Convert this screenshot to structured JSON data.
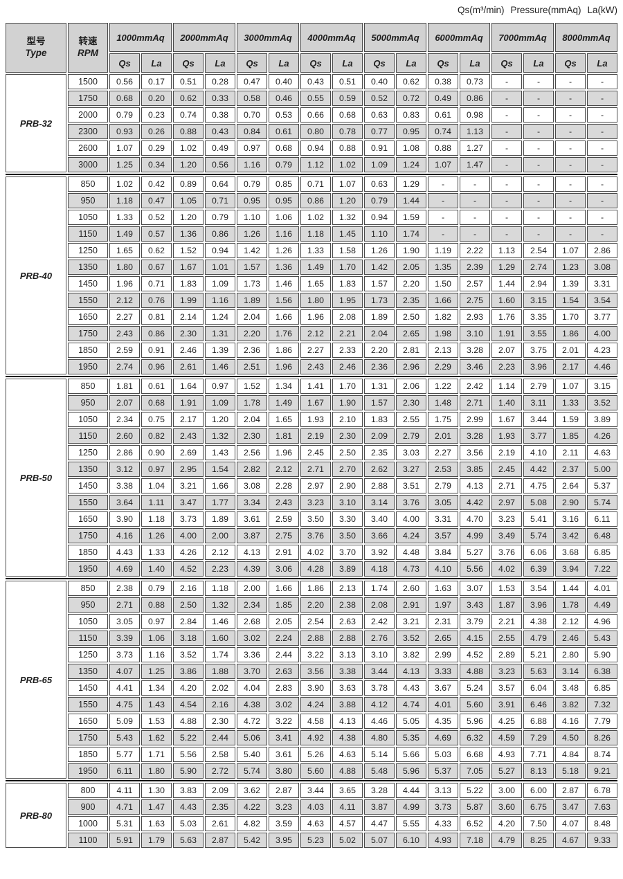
{
  "note": {
    "qs": "Qs(m³/min)",
    "pressure": "Pressure(mmAq)",
    "la": "La(kW)"
  },
  "header": {
    "type_cn": "型号",
    "type_en": "Type",
    "rpm_cn": "转速",
    "rpm_en": "RPM",
    "pressures": [
      "1000mmAq",
      "2000mmAq",
      "3000mmAq",
      "4000mmAq",
      "5000mmAq",
      "6000mmAq",
      "7000mmAq",
      "8000mmAq"
    ],
    "flow_label": "Qs",
    "power_label": "La"
  },
  "colors": {
    "header_bg": "#d2d2d2",
    "stripe_bg": "#d9d9d9",
    "cell_border": "#4a4a4a",
    "section_divider": "#0a0a0a"
  },
  "sections": [
    {
      "model": "PRB-32",
      "rows": [
        {
          "rpm": "1500",
          "values": [
            "0.56",
            "0.17",
            "0.51",
            "0.28",
            "0.47",
            "0.40",
            "0.43",
            "0.51",
            "0.40",
            "0.62",
            "0.38",
            "0.73",
            "-",
            "-",
            "-",
            "-"
          ]
        },
        {
          "rpm": "1750",
          "values": [
            "0.68",
            "0.20",
            "0.62",
            "0.33",
            "0.58",
            "0.46",
            "0.55",
            "0.59",
            "0.52",
            "0.72",
            "0.49",
            "0.86",
            "-",
            "-",
            "-",
            "-"
          ]
        },
        {
          "rpm": "2000",
          "values": [
            "0.79",
            "0.23",
            "0.74",
            "0.38",
            "0.70",
            "0.53",
            "0.66",
            "0.68",
            "0.63",
            "0.83",
            "0.61",
            "0.98",
            "-",
            "-",
            "-",
            "-"
          ]
        },
        {
          "rpm": "2300",
          "values": [
            "0.93",
            "0.26",
            "0.88",
            "0.43",
            "0.84",
            "0.61",
            "0.80",
            "0.78",
            "0.77",
            "0.95",
            "0.74",
            "1.13",
            "-",
            "-",
            "-",
            "-"
          ]
        },
        {
          "rpm": "2600",
          "values": [
            "1.07",
            "0.29",
            "1.02",
            "0.49",
            "0.97",
            "0.68",
            "0.94",
            "0.88",
            "0.91",
            "1.08",
            "0.88",
            "1.27",
            "-",
            "-",
            "-",
            "-"
          ]
        },
        {
          "rpm": "3000",
          "values": [
            "1.25",
            "0.34",
            "1.20",
            "0.56",
            "1.16",
            "0.79",
            "1.12",
            "1.02",
            "1.09",
            "1.24",
            "1.07",
            "1.47",
            "-",
            "-",
            "-",
            "-"
          ]
        }
      ]
    },
    {
      "model": "PRB-40",
      "rows": [
        {
          "rpm": "850",
          "values": [
            "1.02",
            "0.42",
            "0.89",
            "0.64",
            "0.79",
            "0.85",
            "0.71",
            "1.07",
            "0.63",
            "1.29",
            "-",
            "-",
            "-",
            "-",
            "-",
            "-"
          ]
        },
        {
          "rpm": "950",
          "values": [
            "1.18",
            "0.47",
            "1.05",
            "0.71",
            "0.95",
            "0.95",
            "0.86",
            "1.20",
            "0.79",
            "1.44",
            "-",
            "-",
            "-",
            "-",
            "-",
            "-"
          ]
        },
        {
          "rpm": "1050",
          "values": [
            "1.33",
            "0.52",
            "1.20",
            "0.79",
            "1.10",
            "1.06",
            "1.02",
            "1.32",
            "0.94",
            "1.59",
            "-",
            "-",
            "-",
            "-",
            "-",
            "-"
          ]
        },
        {
          "rpm": "1150",
          "values": [
            "1.49",
            "0.57",
            "1.36",
            "0.86",
            "1.26",
            "1.16",
            "1.18",
            "1.45",
            "1.10",
            "1.74",
            "-",
            "-",
            "-",
            "-",
            "-",
            "-"
          ]
        },
        {
          "rpm": "1250",
          "values": [
            "1.65",
            "0.62",
            "1.52",
            "0.94",
            "1.42",
            "1.26",
            "1.33",
            "1.58",
            "1.26",
            "1.90",
            "1.19",
            "2.22",
            "1.13",
            "2.54",
            "1.07",
            "2.86"
          ]
        },
        {
          "rpm": "1350",
          "values": [
            "1.80",
            "0.67",
            "1.67",
            "1.01",
            "1.57",
            "1.36",
            "1.49",
            "1.70",
            "1.42",
            "2.05",
            "1.35",
            "2.39",
            "1.29",
            "2.74",
            "1.23",
            "3.08"
          ]
        },
        {
          "rpm": "1450",
          "values": [
            "1.96",
            "0.71",
            "1.83",
            "1.09",
            "1.73",
            "1.46",
            "1.65",
            "1.83",
            "1.57",
            "2.20",
            "1.50",
            "2.57",
            "1.44",
            "2.94",
            "1.39",
            "3.31"
          ]
        },
        {
          "rpm": "1550",
          "values": [
            "2.12",
            "0.76",
            "1.99",
            "1.16",
            "1.89",
            "1.56",
            "1.80",
            "1.95",
            "1.73",
            "2.35",
            "1.66",
            "2.75",
            "1.60",
            "3.15",
            "1.54",
            "3.54"
          ]
        },
        {
          "rpm": "1650",
          "values": [
            "2.27",
            "0.81",
            "2.14",
            "1.24",
            "2.04",
            "1.66",
            "1.96",
            "2.08",
            "1.89",
            "2.50",
            "1.82",
            "2.93",
            "1.76",
            "3.35",
            "1.70",
            "3.77"
          ]
        },
        {
          "rpm": "1750",
          "values": [
            "2.43",
            "0.86",
            "2.30",
            "1.31",
            "2.20",
            "1.76",
            "2.12",
            "2.21",
            "2.04",
            "2.65",
            "1.98",
            "3.10",
            "1.91",
            "3.55",
            "1.86",
            "4.00"
          ]
        },
        {
          "rpm": "1850",
          "values": [
            "2.59",
            "0.91",
            "2.46",
            "1.39",
            "2.36",
            "1.86",
            "2.27",
            "2.33",
            "2.20",
            "2.81",
            "2.13",
            "3.28",
            "2.07",
            "3.75",
            "2.01",
            "4.23"
          ]
        },
        {
          "rpm": "1950",
          "values": [
            "2.74",
            "0.96",
            "2.61",
            "1.46",
            "2.51",
            "1.96",
            "2.43",
            "2.46",
            "2.36",
            "2.96",
            "2.29",
            "3.46",
            "2.23",
            "3.96",
            "2.17",
            "4.46"
          ]
        }
      ]
    },
    {
      "model": "PRB-50",
      "rows": [
        {
          "rpm": "850",
          "values": [
            "1.81",
            "0.61",
            "1.64",
            "0.97",
            "1.52",
            "1.34",
            "1.41",
            "1.70",
            "1.31",
            "2.06",
            "1.22",
            "2.42",
            "1.14",
            "2.79",
            "1.07",
            "3.15"
          ]
        },
        {
          "rpm": "950",
          "values": [
            "2.07",
            "0.68",
            "1.91",
            "1.09",
            "1.78",
            "1.49",
            "1.67",
            "1.90",
            "1.57",
            "2.30",
            "1.48",
            "2.71",
            "1.40",
            "3.11",
            "1.33",
            "3.52"
          ]
        },
        {
          "rpm": "1050",
          "values": [
            "2.34",
            "0.75",
            "2.17",
            "1.20",
            "2.04",
            "1.65",
            "1.93",
            "2.10",
            "1.83",
            "2.55",
            "1.75",
            "2.99",
            "1.67",
            "3.44",
            "1.59",
            "3.89"
          ]
        },
        {
          "rpm": "1150",
          "values": [
            "2.60",
            "0.82",
            "2.43",
            "1.32",
            "2.30",
            "1.81",
            "2.19",
            "2.30",
            "2.09",
            "2.79",
            "2.01",
            "3.28",
            "1.93",
            "3.77",
            "1.85",
            "4.26"
          ]
        },
        {
          "rpm": "1250",
          "values": [
            "2.86",
            "0.90",
            "2.69",
            "1.43",
            "2.56",
            "1.96",
            "2.45",
            "2.50",
            "2.35",
            "3.03",
            "2.27",
            "3.56",
            "2.19",
            "4.10",
            "2.11",
            "4.63"
          ]
        },
        {
          "rpm": "1350",
          "values": [
            "3.12",
            "0.97",
            "2.95",
            "1.54",
            "2.82",
            "2.12",
            "2.71",
            "2.70",
            "2.62",
            "3.27",
            "2.53",
            "3.85",
            "2.45",
            "4.42",
            "2.37",
            "5.00"
          ]
        },
        {
          "rpm": "1450",
          "values": [
            "3.38",
            "1.04",
            "3.21",
            "1.66",
            "3.08",
            "2.28",
            "2.97",
            "2.90",
            "2.88",
            "3.51",
            "2.79",
            "4.13",
            "2.71",
            "4.75",
            "2.64",
            "5.37"
          ]
        },
        {
          "rpm": "1550",
          "values": [
            "3.64",
            "1.11",
            "3.47",
            "1.77",
            "3.34",
            "2.43",
            "3.23",
            "3.10",
            "3.14",
            "3.76",
            "3.05",
            "4.42",
            "2.97",
            "5.08",
            "2.90",
            "5.74"
          ]
        },
        {
          "rpm": "1650",
          "values": [
            "3.90",
            "1.18",
            "3.73",
            "1.89",
            "3.61",
            "2.59",
            "3.50",
            "3.30",
            "3.40",
            "4.00",
            "3.31",
            "4.70",
            "3.23",
            "5.41",
            "3.16",
            "6.11"
          ]
        },
        {
          "rpm": "1750",
          "values": [
            "4.16",
            "1.26",
            "4.00",
            "2.00",
            "3.87",
            "2.75",
            "3.76",
            "3.50",
            "3.66",
            "4.24",
            "3.57",
            "4.99",
            "3.49",
            "5.74",
            "3.42",
            "6.48"
          ]
        },
        {
          "rpm": "1850",
          "values": [
            "4.43",
            "1.33",
            "4.26",
            "2.12",
            "4.13",
            "2.91",
            "4.02",
            "3.70",
            "3.92",
            "4.48",
            "3.84",
            "5.27",
            "3.76",
            "6.06",
            "3.68",
            "6.85"
          ]
        },
        {
          "rpm": "1950",
          "values": [
            "4.69",
            "1.40",
            "4.52",
            "2.23",
            "4.39",
            "3.06",
            "4.28",
            "3.89",
            "4.18",
            "4.73",
            "4.10",
            "5.56",
            "4.02",
            "6.39",
            "3.94",
            "7.22"
          ]
        }
      ]
    },
    {
      "model": "PRB-65",
      "rows": [
        {
          "rpm": "850",
          "values": [
            "2.38",
            "0.79",
            "2.16",
            "1.18",
            "2.00",
            "1.66",
            "1.86",
            "2.13",
            "1.74",
            "2.60",
            "1.63",
            "3.07",
            "1.53",
            "3.54",
            "1.44",
            "4.01"
          ]
        },
        {
          "rpm": "950",
          "values": [
            "2.71",
            "0.88",
            "2.50",
            "1.32",
            "2.34",
            "1.85",
            "2.20",
            "2.38",
            "2.08",
            "2.91",
            "1.97",
            "3.43",
            "1.87",
            "3.96",
            "1.78",
            "4.49"
          ]
        },
        {
          "rpm": "1050",
          "values": [
            "3.05",
            "0.97",
            "2.84",
            "1.46",
            "2.68",
            "2.05",
            "2.54",
            "2.63",
            "2.42",
            "3.21",
            "2.31",
            "3.79",
            "2.21",
            "4.38",
            "2.12",
            "4.96"
          ]
        },
        {
          "rpm": "1150",
          "values": [
            "3.39",
            "1.06",
            "3.18",
            "1.60",
            "3.02",
            "2.24",
            "2.88",
            "2.88",
            "2.76",
            "3.52",
            "2.65",
            "4.15",
            "2.55",
            "4.79",
            "2.46",
            "5.43"
          ]
        },
        {
          "rpm": "1250",
          "values": [
            "3.73",
            "1.16",
            "3.52",
            "1.74",
            "3.36",
            "2.44",
            "3.22",
            "3.13",
            "3.10",
            "3.82",
            "2.99",
            "4.52",
            "2.89",
            "5.21",
            "2.80",
            "5.90"
          ]
        },
        {
          "rpm": "1350",
          "values": [
            "4.07",
            "1.25",
            "3.86",
            "1.88",
            "3.70",
            "2.63",
            "3.56",
            "3.38",
            "3.44",
            "4.13",
            "3.33",
            "4.88",
            "3.23",
            "5.63",
            "3.14",
            "6.38"
          ]
        },
        {
          "rpm": "1450",
          "values": [
            "4.41",
            "1.34",
            "4.20",
            "2.02",
            "4.04",
            "2.83",
            "3.90",
            "3.63",
            "3.78",
            "4.43",
            "3.67",
            "5.24",
            "3.57",
            "6.04",
            "3.48",
            "6.85"
          ]
        },
        {
          "rpm": "1550",
          "values": [
            "4.75",
            "1.43",
            "4.54",
            "2.16",
            "4.38",
            "3.02",
            "4.24",
            "3.88",
            "4.12",
            "4.74",
            "4.01",
            "5.60",
            "3.91",
            "6.46",
            "3.82",
            "7.32"
          ]
        },
        {
          "rpm": "1650",
          "values": [
            "5.09",
            "1.53",
            "4.88",
            "2.30",
            "4.72",
            "3.22",
            "4.58",
            "4.13",
            "4.46",
            "5.05",
            "4.35",
            "5.96",
            "4.25",
            "6.88",
            "4.16",
            "7.79"
          ]
        },
        {
          "rpm": "1750",
          "values": [
            "5.43",
            "1.62",
            "5.22",
            "2.44",
            "5.06",
            "3.41",
            "4.92",
            "4.38",
            "4.80",
            "5.35",
            "4.69",
            "6.32",
            "4.59",
            "7.29",
            "4.50",
            "8.26"
          ]
        },
        {
          "rpm": "1850",
          "values": [
            "5.77",
            "1.71",
            "5.56",
            "2.58",
            "5.40",
            "3.61",
            "5.26",
            "4.63",
            "5.14",
            "5.66",
            "5.03",
            "6.68",
            "4.93",
            "7.71",
            "4.84",
            "8.74"
          ]
        },
        {
          "rpm": "1950",
          "values": [
            "6.11",
            "1.80",
            "5.90",
            "2.72",
            "5.74",
            "3.80",
            "5.60",
            "4.88",
            "5.48",
            "5.96",
            "5.37",
            "7.05",
            "5.27",
            "8.13",
            "5.18",
            "9.21"
          ]
        }
      ]
    },
    {
      "model": "PRB-80",
      "rows": [
        {
          "rpm": "800",
          "values": [
            "4.11",
            "1.30",
            "3.83",
            "2.09",
            "3.62",
            "2.87",
            "3.44",
            "3.65",
            "3.28",
            "4.44",
            "3.13",
            "5.22",
            "3.00",
            "6.00",
            "2.87",
            "6.78"
          ]
        },
        {
          "rpm": "900",
          "values": [
            "4.71",
            "1.47",
            "4.43",
            "2.35",
            "4.22",
            "3.23",
            "4.03",
            "4.11",
            "3.87",
            "4.99",
            "3.73",
            "5.87",
            "3.60",
            "6.75",
            "3.47",
            "7.63"
          ]
        },
        {
          "rpm": "1000",
          "values": [
            "5.31",
            "1.63",
            "5.03",
            "2.61",
            "4.82",
            "3.59",
            "4.63",
            "4.57",
            "4.47",
            "5.55",
            "4.33",
            "6.52",
            "4.20",
            "7.50",
            "4.07",
            "8.48"
          ]
        },
        {
          "rpm": "1100",
          "values": [
            "5.91",
            "1.79",
            "5.63",
            "2.87",
            "5.42",
            "3.95",
            "5.23",
            "5.02",
            "5.07",
            "6.10",
            "4.93",
            "7.18",
            "4.79",
            "8.25",
            "4.67",
            "9.33"
          ]
        }
      ]
    }
  ]
}
